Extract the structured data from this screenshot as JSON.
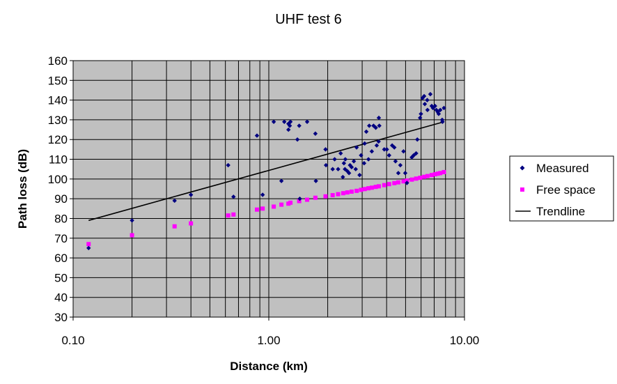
{
  "chart_data": {
    "type": "scatter",
    "title": "UHF test 6",
    "xlabel": "Distance (km)",
    "ylabel": "Path loss (dB)",
    "x_scale": "log",
    "xlim": [
      0.1,
      10
    ],
    "ylim": [
      30,
      160
    ],
    "x_ticks": [
      "0.10",
      "1.00",
      "10.00"
    ],
    "y_ticks": [
      "30",
      "40",
      "50",
      "60",
      "70",
      "80",
      "90",
      "100",
      "110",
      "120",
      "130",
      "140",
      "150",
      "160"
    ],
    "grid": true,
    "legend_position": "right",
    "plot_background": "#c0c0c0",
    "series": [
      {
        "name": "Measured",
        "marker": "diamond",
        "color": "#000080",
        "points": [
          [
            0.12,
            65
          ],
          [
            0.2,
            79
          ],
          [
            0.33,
            89
          ],
          [
            0.4,
            92
          ],
          [
            0.62,
            107
          ],
          [
            0.66,
            91
          ],
          [
            0.87,
            122
          ],
          [
            0.93,
            92
          ],
          [
            1.06,
            129
          ],
          [
            1.16,
            99
          ],
          [
            1.2,
            129
          ],
          [
            1.26,
            125
          ],
          [
            1.26,
            128
          ],
          [
            1.28,
            127
          ],
          [
            1.29,
            129
          ],
          [
            1.4,
            120
          ],
          [
            1.43,
            127
          ],
          [
            1.44,
            90
          ],
          [
            1.57,
            129
          ],
          [
            1.73,
            123
          ],
          [
            1.74,
            99
          ],
          [
            1.95,
            115
          ],
          [
            1.96,
            107
          ],
          [
            2.12,
            105
          ],
          [
            2.17,
            110
          ],
          [
            2.26,
            105
          ],
          [
            2.33,
            113
          ],
          [
            2.39,
            101
          ],
          [
            2.42,
            108
          ],
          [
            2.45,
            105
          ],
          [
            2.46,
            110
          ],
          [
            2.52,
            104
          ],
          [
            2.57,
            103
          ],
          [
            2.6,
            107
          ],
          [
            2.65,
            106
          ],
          [
            2.72,
            109
          ],
          [
            2.78,
            105
          ],
          [
            2.81,
            116
          ],
          [
            2.91,
            102
          ],
          [
            2.96,
            112
          ],
          [
            3.07,
            108
          ],
          [
            3.09,
            118
          ],
          [
            3.15,
            124
          ],
          [
            3.23,
            110
          ],
          [
            3.26,
            127
          ],
          [
            3.36,
            114
          ],
          [
            3.43,
            127
          ],
          [
            3.52,
            126
          ],
          [
            3.56,
            117
          ],
          [
            3.64,
            119
          ],
          [
            3.65,
            131
          ],
          [
            3.67,
            127
          ],
          [
            3.89,
            115
          ],
          [
            4.01,
            115
          ],
          [
            4.12,
            112
          ],
          [
            4.27,
            117
          ],
          [
            4.38,
            116
          ],
          [
            4.44,
            109
          ],
          [
            4.59,
            103
          ],
          [
            4.7,
            107
          ],
          [
            4.88,
            114
          ],
          [
            4.98,
            103
          ],
          [
            5.08,
            98
          ],
          [
            5.38,
            111
          ],
          [
            5.5,
            112
          ],
          [
            5.66,
            113
          ],
          [
            5.74,
            120
          ],
          [
            5.93,
            131
          ],
          [
            5.99,
            133
          ],
          [
            6.1,
            141
          ],
          [
            6.22,
            142
          ],
          [
            6.27,
            138
          ],
          [
            6.45,
            140
          ],
          [
            6.47,
            135
          ],
          [
            6.69,
            143
          ],
          [
            6.8,
            137
          ],
          [
            6.9,
            136
          ],
          [
            7.07,
            137
          ],
          [
            7.18,
            135
          ],
          [
            7.3,
            134
          ],
          [
            7.38,
            133
          ],
          [
            7.52,
            135
          ],
          [
            7.69,
            130
          ],
          [
            7.72,
            129
          ],
          [
            7.85,
            136
          ]
        ]
      },
      {
        "name": "Free space",
        "marker": "square",
        "color": "#ff00ff",
        "points": [
          [
            0.12,
            67
          ],
          [
            0.2,
            71.5
          ],
          [
            0.33,
            76
          ],
          [
            0.4,
            77.5
          ],
          [
            0.62,
            81.5
          ],
          [
            0.66,
            82
          ],
          [
            0.87,
            84.5
          ],
          [
            0.93,
            85
          ],
          [
            1.06,
            86
          ],
          [
            1.16,
            87
          ],
          [
            1.26,
            87.5
          ],
          [
            1.29,
            88
          ],
          [
            1.43,
            88.8
          ],
          [
            1.57,
            89.5
          ],
          [
            1.73,
            90.5
          ],
          [
            1.95,
            91.2
          ],
          [
            2.12,
            91.8
          ],
          [
            2.26,
            92.3
          ],
          [
            2.4,
            92.8
          ],
          [
            2.52,
            93.2
          ],
          [
            2.65,
            93.6
          ],
          [
            2.81,
            94
          ],
          [
            2.96,
            94.5
          ],
          [
            3.09,
            94.9
          ],
          [
            3.23,
            95.3
          ],
          [
            3.36,
            95.6
          ],
          [
            3.52,
            96
          ],
          [
            3.65,
            96.3
          ],
          [
            3.89,
            96.9
          ],
          [
            4.12,
            97.4
          ],
          [
            4.38,
            97.9
          ],
          [
            4.59,
            98.3
          ],
          [
            4.88,
            98.8
          ],
          [
            5.08,
            99.2
          ],
          [
            5.38,
            99.7
          ],
          [
            5.66,
            100.2
          ],
          [
            5.93,
            100.6
          ],
          [
            6.22,
            101.1
          ],
          [
            6.47,
            101.5
          ],
          [
            6.8,
            102
          ],
          [
            7.07,
            102.4
          ],
          [
            7.3,
            102.7
          ],
          [
            7.52,
            103
          ],
          [
            7.85,
            103.5
          ]
        ]
      },
      {
        "name": "Trendline",
        "type": "line",
        "color": "#000000",
        "points": [
          [
            0.12,
            79
          ],
          [
            7.85,
            129
          ]
        ]
      }
    ]
  }
}
